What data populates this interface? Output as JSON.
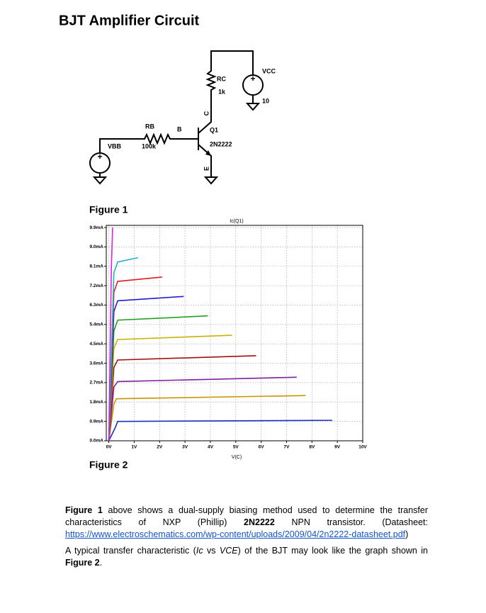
{
  "header": {
    "title": "BJT Amplifier Circuit"
  },
  "figure1": {
    "labels": {
      "vcc": "VCC",
      "rc": "RC",
      "rc_value": "1k",
      "vcc_value": "10",
      "rb": "RB",
      "rb_value": "100k",
      "base": "B",
      "q": "Q1",
      "part": "2N2222",
      "vbb": "VBB",
      "collector": "C",
      "emitter": "E"
    },
    "caption": "Figure 1"
  },
  "chart_data": {
    "type": "line",
    "title": "Ic(Q1)",
    "x_label": "V(C)",
    "xlim": [
      -0.1,
      10
    ],
    "ylim": [
      0,
      10
    ],
    "grid": true,
    "xticks": [
      {
        "value": 0,
        "label": "0V"
      },
      {
        "value": 1,
        "label": "1V"
      },
      {
        "value": 2,
        "label": "2V"
      },
      {
        "value": 3,
        "label": "3V"
      },
      {
        "value": 4,
        "label": "4V"
      },
      {
        "value": 5,
        "label": "5V"
      },
      {
        "value": 6,
        "label": "6V"
      },
      {
        "value": 7,
        "label": "7V"
      },
      {
        "value": 8,
        "label": "8V"
      },
      {
        "value": 9,
        "label": "9V"
      },
      {
        "value": 10,
        "label": "10V"
      }
    ],
    "yticks": [
      {
        "value": 0,
        "label": "0.0mA"
      },
      {
        "value": 0.9,
        "label": "0.9mA"
      },
      {
        "value": 1.8,
        "label": "1.8mA"
      },
      {
        "value": 2.7,
        "label": "2.7mA"
      },
      {
        "value": 3.6,
        "label": "3.6mA"
      },
      {
        "value": 4.5,
        "label": "4.5mA"
      },
      {
        "value": 5.4,
        "label": "5.4mA"
      },
      {
        "value": 6.3,
        "label": "6.3mA"
      },
      {
        "value": 7.2,
        "label": "7.2mA"
      },
      {
        "value": 8.1,
        "label": "8.1mA"
      },
      {
        "value": 9.0,
        "label": "9.0mA"
      },
      {
        "value": 9.9,
        "label": "9.9mA"
      }
    ],
    "series": [
      {
        "color": "#1a30c0",
        "x": [
          0,
          0.25,
          0.35,
          8.8
        ],
        "values": [
          0,
          0.6,
          0.9,
          0.95
        ]
      },
      {
        "color": "#c89600",
        "x": [
          0,
          0.2,
          0.3,
          7.75
        ],
        "values": [
          0,
          1.7,
          1.95,
          2.1
        ]
      },
      {
        "color": "#8020a0",
        "x": [
          0,
          0.2,
          0.35,
          7.4
        ],
        "values": [
          0,
          2.5,
          2.75,
          2.95
        ]
      },
      {
        "color": "#a01010",
        "x": [
          0,
          0.2,
          0.35,
          5.8
        ],
        "values": [
          0,
          3.4,
          3.75,
          3.95
        ]
      },
      {
        "color": "#c8b400",
        "x": [
          0,
          0.2,
          0.35,
          4.85
        ],
        "values": [
          0,
          4.3,
          4.7,
          4.9
        ]
      },
      {
        "color": "#20a020",
        "x": [
          0,
          0.2,
          0.35,
          3.9
        ],
        "values": [
          0,
          5.1,
          5.6,
          5.8
        ]
      },
      {
        "color": "#2020d0",
        "x": [
          0,
          0.2,
          0.35,
          2.95
        ],
        "values": [
          0,
          6.0,
          6.5,
          6.7
        ]
      },
      {
        "color": "#e02020",
        "x": [
          0,
          0.2,
          0.35,
          2.1
        ],
        "values": [
          0,
          6.9,
          7.4,
          7.6
        ]
      },
      {
        "color": "#20b0c8",
        "x": [
          0,
          0.2,
          0.35,
          1.15
        ],
        "values": [
          0,
          7.8,
          8.3,
          8.5
        ]
      },
      {
        "color": "#e020e0",
        "x": [
          0,
          0.1,
          0.15
        ],
        "values": [
          0,
          8.0,
          9.9
        ]
      }
    ]
  },
  "figure2": {
    "caption": "Figure 2"
  },
  "text": {
    "paragraphs": [
      [
        "Figure 1",
        " above shows a dual-supply biasing method used to determine the transfer characteristics of NXP (Phillip) ",
        "2N2222",
        " NPN transistor. (Datasheet: ",
        "https://www.electroschematics.com/wp-content/uploads/2009/04/2n2222-datasheet.pdf",
        ")"
      ],
      [
        "A typical transfer characteristic (",
        "Ic",
        " vs ",
        "VCE",
        ") of the BJT may look like the graph shown in ",
        "Figure 2",
        "."
      ]
    ]
  }
}
